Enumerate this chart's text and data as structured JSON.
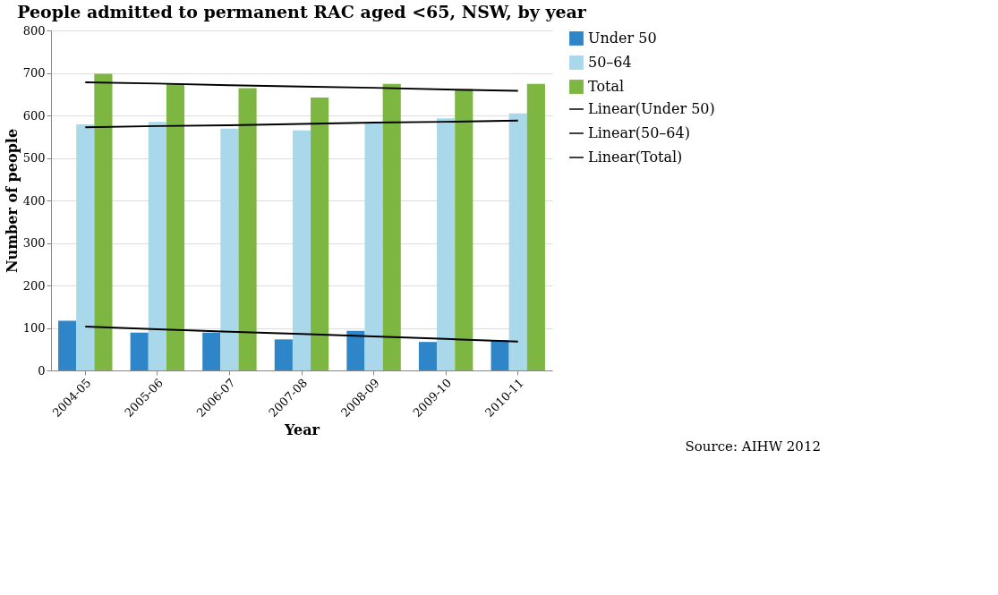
{
  "chart_data": {
    "type": "bar",
    "title": "People admitted to permanent RAC aged <65, NSW, by year",
    "xlabel": "Year",
    "ylabel": "Number of people",
    "categories": [
      "2004-05",
      "2005-06",
      "2006-07",
      "2007-08",
      "2008-09",
      "2009-10",
      "2010-11"
    ],
    "series": [
      {
        "name": "Under 50",
        "color": "#2e86c9",
        "values": [
          117,
          89,
          89,
          73,
          93,
          67,
          71
        ]
      },
      {
        "name": "50–64",
        "color": "#a9d8ea",
        "values": [
          579,
          585,
          569,
          565,
          581,
          593,
          605
        ]
      },
      {
        "name": "Total",
        "color": "#7db640",
        "values": [
          698,
          674,
          664,
          642,
          674,
          662,
          674
        ]
      },
      {
        "name": "Linear(Under 50)",
        "type": "line",
        "color": "#000000",
        "values": [
          103,
          97,
          91,
          86,
          80,
          74,
          68
        ]
      },
      {
        "name": "Linear(50–64)",
        "type": "line",
        "color": "#000000",
        "values": [
          572,
          575,
          577,
          580,
          583,
          585,
          588
        ]
      },
      {
        "name": "Linear(Total)",
        "type": "line",
        "color": "#000000",
        "values": [
          678,
          675,
          671,
          668,
          665,
          661,
          658
        ]
      }
    ],
    "ylim": [
      0,
      800
    ],
    "yticks": [
      0,
      100,
      200,
      300,
      400,
      500,
      600,
      700,
      800
    ],
    "grid": "y",
    "legend": "right",
    "annotations": [
      "Source: AIHW 2012"
    ]
  }
}
